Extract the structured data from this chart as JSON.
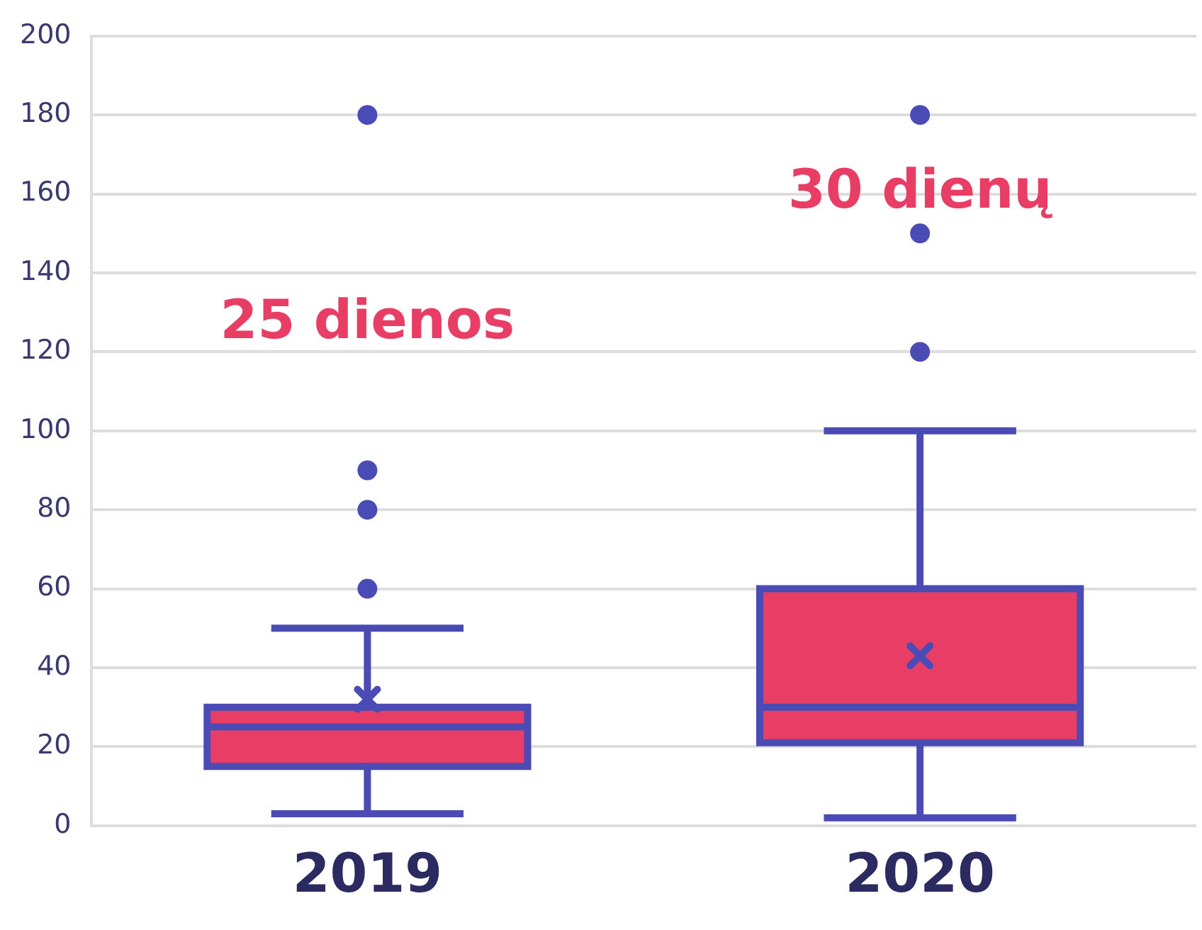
{
  "chart_data": {
    "type": "box",
    "categories": [
      "2019",
      "2020"
    ],
    "series": [
      {
        "color": "#e83e66",
        "boxes": [
          {
            "low": 3,
            "q1": 15,
            "median": 25,
            "q3": 30,
            "high": 50,
            "mean": 32,
            "outliers": [
              60,
              80,
              90,
              180
            ]
          },
          {
            "low": 2,
            "q1": 21,
            "median": 30,
            "q3": 60,
            "high": 100,
            "mean": 43,
            "outliers": [
              120,
              150,
              180
            ]
          }
        ]
      }
    ],
    "ylim": [
      0,
      200
    ],
    "yticks": [
      0,
      20,
      40,
      60,
      80,
      100,
      120,
      140,
      160,
      180,
      200
    ],
    "grid": "y",
    "legend": false,
    "marker": "circle",
    "annotations": [
      "25 dienos",
      "30 dienų"
    ]
  }
}
